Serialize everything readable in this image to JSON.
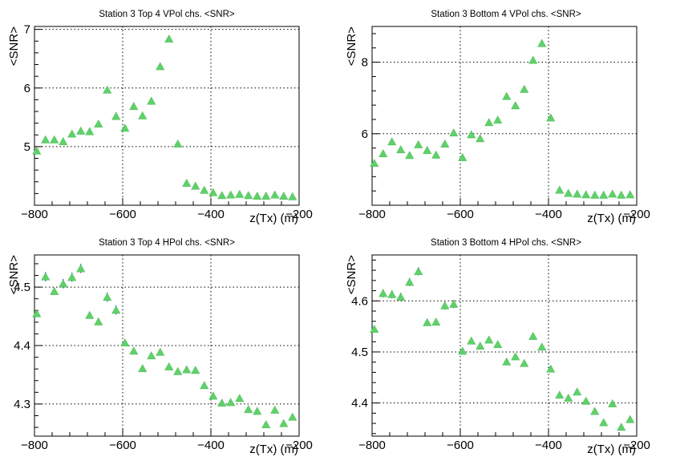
{
  "colors": {
    "marker": "#5fd16a",
    "error_bar": "#2020c0",
    "grid": "#000000",
    "frame": "#000000",
    "background": "#ffffff"
  },
  "chart_data": [
    {
      "type": "scatter",
      "title": "Station 3 Top 4 VPol chs. <SNR>",
      "xlabel": "z(Tx) (m)",
      "ylabel": "<SNR>",
      "xlim": [
        -800,
        -200
      ],
      "ylim": [
        4.0,
        7.05
      ],
      "xticks": [
        -800,
        -600,
        -400,
        -200
      ],
      "xtick_labels": [
        "−800",
        "−600",
        "−400",
        "−200"
      ],
      "yticks": [
        5,
        6,
        7
      ],
      "ytick_labels": [
        "5",
        "6",
        "7"
      ],
      "grid": true,
      "x": [
        -795,
        -775,
        -755,
        -735,
        -715,
        -695,
        -675,
        -655,
        -635,
        -615,
        -595,
        -575,
        -555,
        -535,
        -515,
        -495,
        -475,
        -455,
        -435,
        -415,
        -395,
        -375,
        -355,
        -335,
        -315,
        -295,
        -275,
        -255,
        -235,
        -215
      ],
      "y": [
        4.93,
        5.12,
        5.12,
        5.09,
        5.22,
        5.27,
        5.26,
        5.39,
        5.97,
        5.52,
        5.32,
        5.69,
        5.53,
        5.78,
        6.37,
        6.84,
        5.05,
        4.38,
        4.33,
        4.26,
        4.22,
        4.17,
        4.18,
        4.19,
        4.17,
        4.16,
        4.16,
        4.18,
        4.16,
        4.15
      ],
      "errors": [
        0.01,
        0.01,
        0.01,
        0.01,
        0.01,
        0.01,
        0.01,
        0.01,
        0.01,
        0.01,
        0.01,
        0.01,
        0.01,
        0.01,
        0.05,
        0.05,
        0.01,
        0.01,
        0.01,
        0.01,
        0.01,
        0.01,
        0.01,
        0.01,
        0.01,
        0.01,
        0.01,
        0.01,
        0.01,
        0.01
      ]
    },
    {
      "type": "scatter",
      "title": "Station 3 Bottom 4 VPol chs. <SNR>",
      "xlabel": "z(Tx) (m)",
      "ylabel": "<SNR>",
      "xlim": [
        -800,
        -200
      ],
      "ylim": [
        4.0,
        9.0
      ],
      "xticks": [
        -800,
        -600,
        -400,
        -200
      ],
      "xtick_labels": [
        "−800",
        "−600",
        "−400",
        "−200"
      ],
      "yticks": [
        6,
        8
      ],
      "ytick_labels": [
        "6",
        "8"
      ],
      "grid": true,
      "x": [
        -795,
        -775,
        -755,
        -735,
        -715,
        -695,
        -675,
        -655,
        -635,
        -615,
        -595,
        -575,
        -555,
        -535,
        -515,
        -495,
        -475,
        -455,
        -435,
        -415,
        -395,
        -375,
        -355,
        -335,
        -315,
        -295,
        -275,
        -255,
        -235,
        -215
      ],
      "y": [
        5.18,
        5.45,
        5.78,
        5.56,
        5.4,
        5.7,
        5.54,
        5.41,
        5.72,
        6.03,
        5.34,
        5.98,
        5.87,
        6.32,
        6.39,
        7.05,
        6.79,
        7.25,
        8.06,
        8.53,
        6.45,
        4.43,
        4.34,
        4.32,
        4.3,
        4.29,
        4.29,
        4.32,
        4.29,
        4.3
      ],
      "errors": [
        0.02,
        0.02,
        0.02,
        0.02,
        0.02,
        0.02,
        0.02,
        0.02,
        0.02,
        0.02,
        0.02,
        0.02,
        0.02,
        0.02,
        0.02,
        0.02,
        0.02,
        0.02,
        0.02,
        0.06,
        0.02,
        0.02,
        0.02,
        0.02,
        0.02,
        0.02,
        0.02,
        0.02,
        0.02,
        0.02
      ]
    },
    {
      "type": "scatter",
      "title": "Station 3 Top 4 HPol chs. <SNR>",
      "xlabel": "z(Tx) (m)",
      "ylabel": "<SNR>",
      "xlim": [
        -800,
        -200
      ],
      "ylim": [
        4.245,
        4.555
      ],
      "xticks": [
        -800,
        -600,
        -400,
        -200
      ],
      "xtick_labels": [
        "−800",
        "−600",
        "−400",
        "−200"
      ],
      "yticks": [
        4.3,
        4.4,
        4.5
      ],
      "ytick_labels": [
        "4.3",
        "4.4",
        "4.5"
      ],
      "grid": true,
      "x": [
        -795,
        -775,
        -755,
        -735,
        -715,
        -695,
        -675,
        -655,
        -635,
        -615,
        -595,
        -575,
        -555,
        -535,
        -515,
        -495,
        -475,
        -455,
        -435,
        -415,
        -395,
        -375,
        -355,
        -335,
        -315,
        -295,
        -275,
        -255,
        -235,
        -215
      ],
      "y": [
        4.455,
        4.518,
        4.493,
        4.506,
        4.517,
        4.532,
        4.452,
        4.441,
        4.483,
        4.461,
        4.405,
        4.391,
        4.361,
        4.383,
        4.389,
        4.364,
        4.356,
        4.359,
        4.358,
        4.332,
        4.314,
        4.302,
        4.303,
        4.31,
        4.291,
        4.288,
        4.265,
        4.29,
        4.267,
        4.278
      ],
      "errors": [
        0.003,
        0.008,
        0.003,
        0.008,
        0.008,
        0.008,
        0.003,
        0.003,
        0.008,
        0.008,
        0.003,
        0.003,
        0.003,
        0.003,
        0.003,
        0.003,
        0.003,
        0.003,
        0.003,
        0.003,
        0.003,
        0.003,
        0.003,
        0.003,
        0.003,
        0.003,
        0.003,
        0.003,
        0.003,
        0.003
      ]
    },
    {
      "type": "scatter",
      "title": "Station 3 Bottom 4 HPol chs. <SNR>",
      "xlabel": "z(Tx) (m)",
      "ylabel": "<SNR>",
      "xlim": [
        -800,
        -200
      ],
      "ylim": [
        4.335,
        4.69
      ],
      "xticks": [
        -800,
        -600,
        -400,
        -200
      ],
      "xtick_labels": [
        "−800",
        "−600",
        "−400",
        "−200"
      ],
      "yticks": [
        4.4,
        4.5,
        4.6
      ],
      "ytick_labels": [
        "4.4",
        "4.5",
        "4.6"
      ],
      "grid": true,
      "x": [
        -795,
        -775,
        -755,
        -735,
        -715,
        -695,
        -675,
        -655,
        -635,
        -615,
        -595,
        -575,
        -555,
        -535,
        -515,
        -495,
        -475,
        -455,
        -435,
        -415,
        -395,
        -375,
        -355,
        -335,
        -315,
        -295,
        -275,
        -255,
        -235,
        -215
      ],
      "y": [
        4.545,
        4.615,
        4.613,
        4.608,
        4.637,
        4.658,
        4.558,
        4.559,
        4.591,
        4.594,
        4.502,
        4.522,
        4.512,
        4.524,
        4.515,
        4.481,
        4.491,
        4.478,
        4.531,
        4.51,
        4.467,
        4.416,
        4.41,
        4.422,
        4.404,
        4.384,
        4.362,
        4.399,
        4.353,
        4.368
      ],
      "errors": [
        0.003,
        0.008,
        0.008,
        0.008,
        0.008,
        0.008,
        0.003,
        0.003,
        0.008,
        0.008,
        0.003,
        0.003,
        0.003,
        0.003,
        0.003,
        0.003,
        0.003,
        0.003,
        0.003,
        0.003,
        0.003,
        0.003,
        0.003,
        0.003,
        0.003,
        0.003,
        0.003,
        0.003,
        0.003,
        0.003
      ]
    }
  ]
}
